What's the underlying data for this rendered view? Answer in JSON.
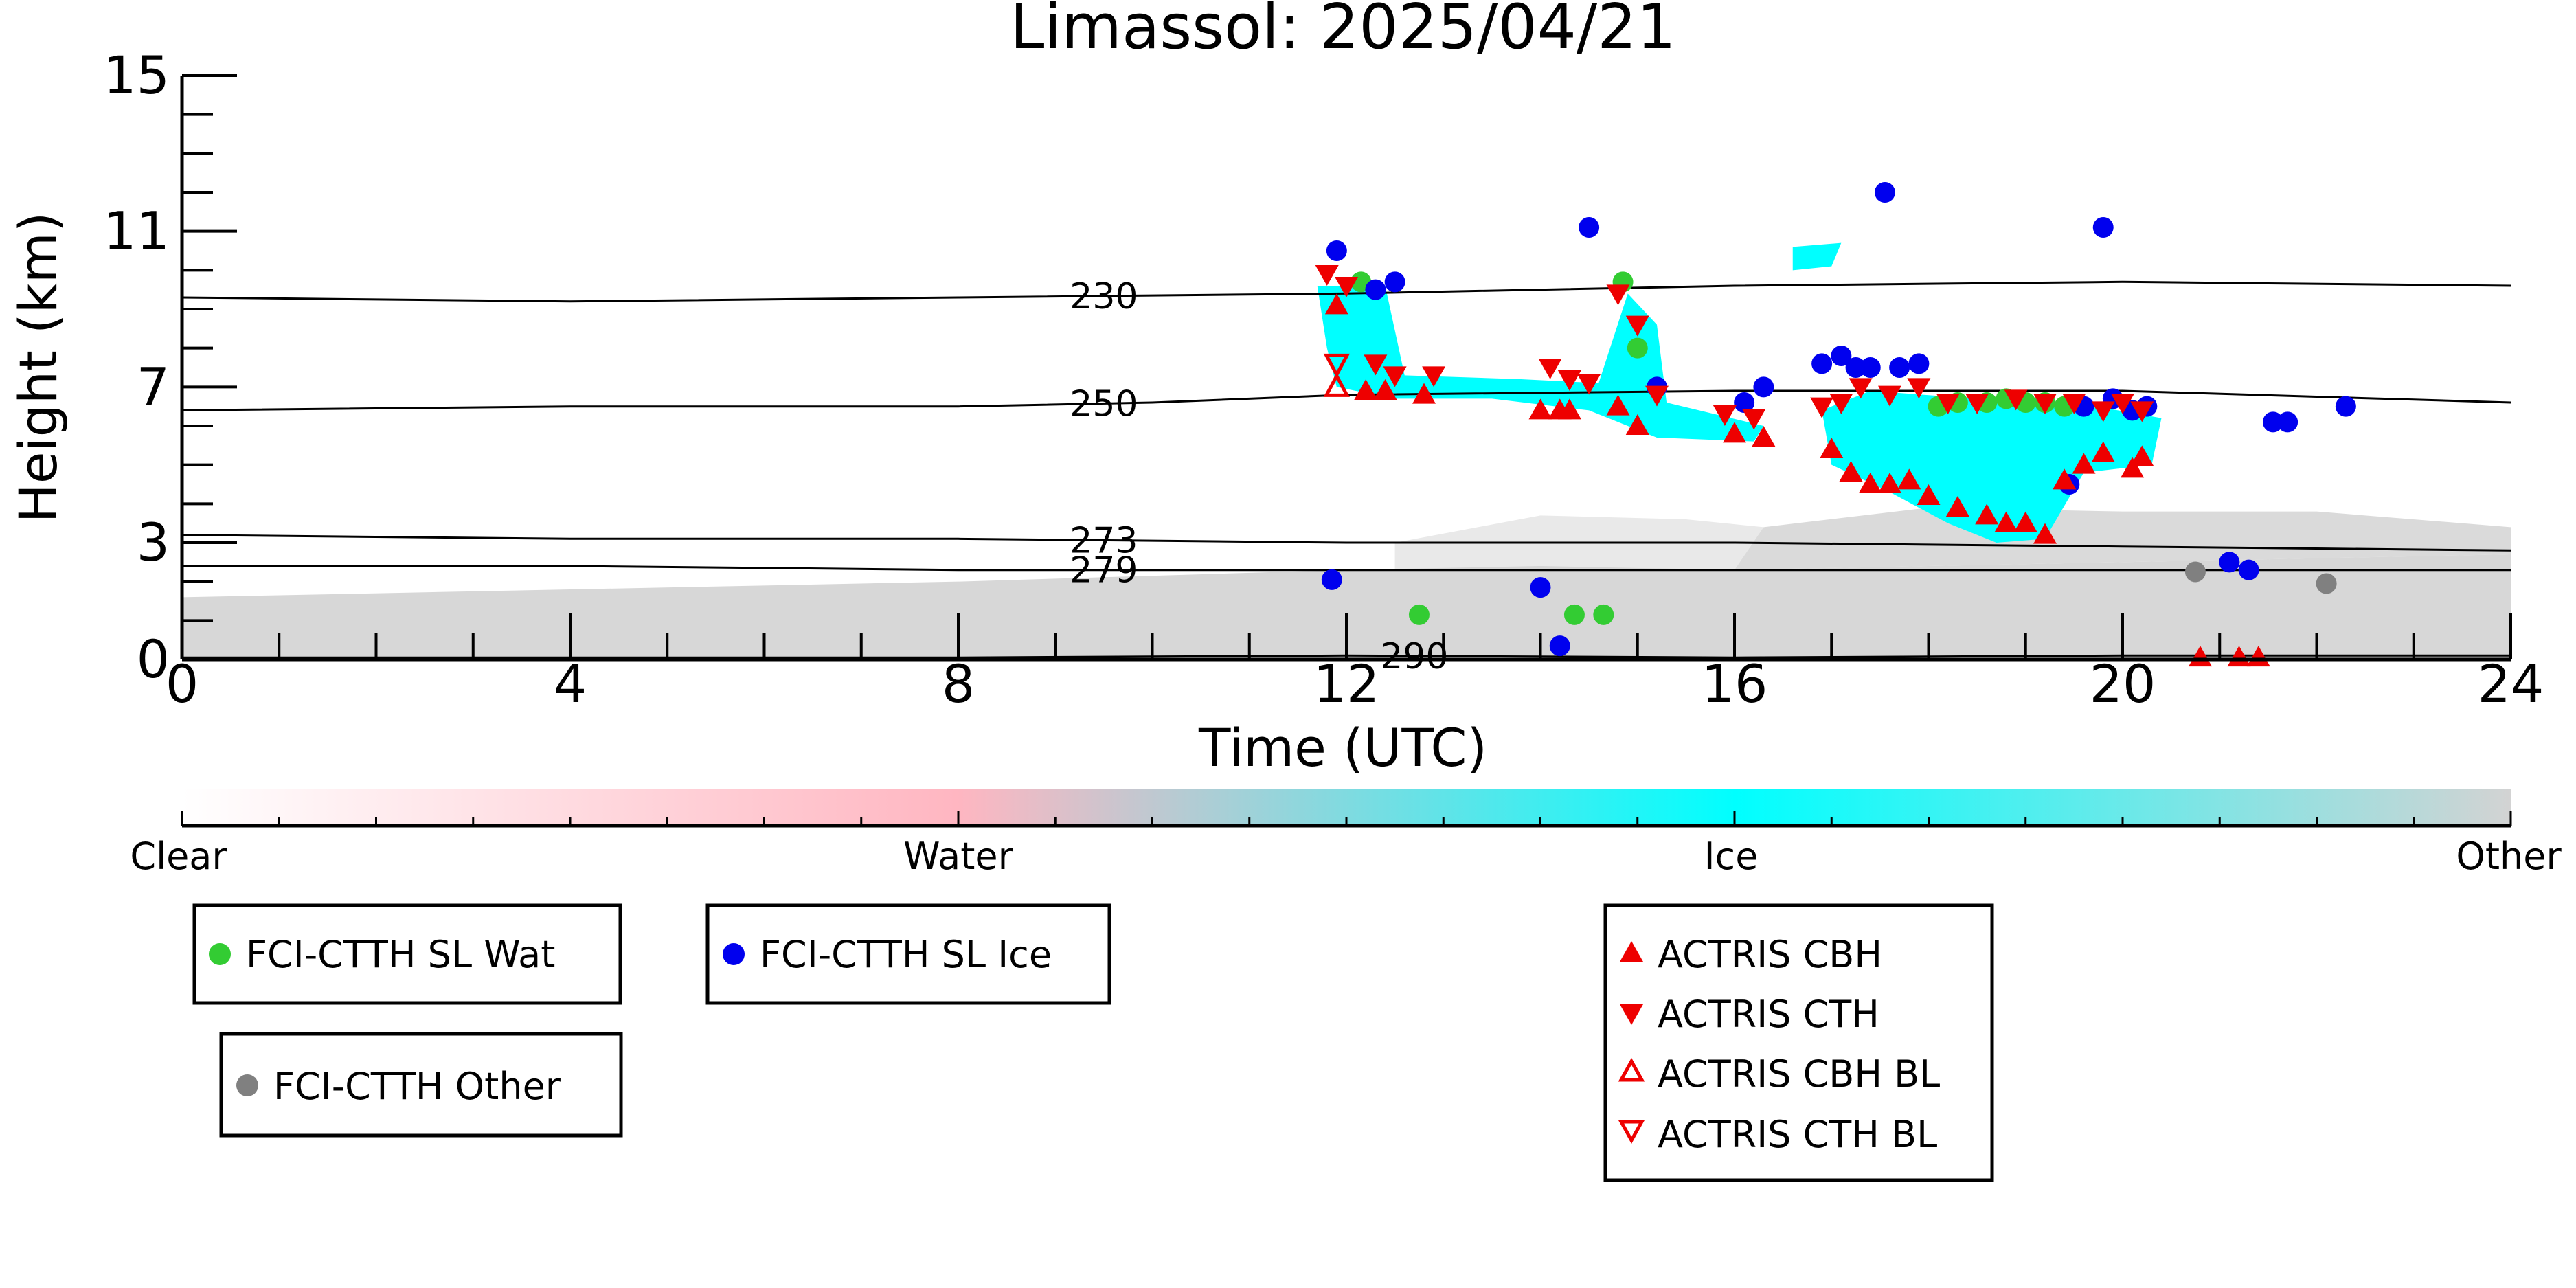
{
  "chart_data": {
    "type": "scatter",
    "title": "Limassol: 2025/04/21",
    "xlabel": "Time (UTC)",
    "ylabel": "Height (km)",
    "xlim": [
      0,
      24
    ],
    "ylim": [
      0,
      15
    ],
    "xticks": [
      0,
      4,
      8,
      12,
      16,
      20,
      24
    ],
    "yticks": [
      0,
      3,
      7,
      11,
      15
    ],
    "grid": false,
    "colorbar": {
      "labels": [
        "Clear",
        "Water",
        "Ice",
        "Other"
      ],
      "positions": [
        0,
        0.333,
        0.667,
        1
      ],
      "colors": [
        "#ffffff",
        "#ffb6c1",
        "#00ffff",
        "#d3d3d3"
      ]
    },
    "contours": [
      {
        "label": "230",
        "label_x": 9.5,
        "x": [
          0,
          4,
          8,
          12,
          16,
          20,
          24
        ],
        "y": [
          9.3,
          9.2,
          9.3,
          9.4,
          9.6,
          9.7,
          9.6
        ]
      },
      {
        "label": "250",
        "label_x": 9.5,
        "x": [
          0,
          4,
          8,
          10,
          12,
          16,
          20,
          24
        ],
        "y": [
          6.4,
          6.5,
          6.5,
          6.6,
          6.8,
          6.9,
          6.9,
          6.6
        ]
      },
      {
        "label": "273",
        "label_x": 9.5,
        "x": [
          0,
          4,
          8,
          12,
          16,
          20,
          24
        ],
        "y": [
          3.2,
          3.1,
          3.1,
          3.0,
          3.0,
          2.9,
          2.8
        ]
      },
      {
        "label": "279",
        "label_x": 9.5,
        "x": [
          0,
          4,
          8,
          12,
          16,
          20,
          24
        ],
        "y": [
          2.4,
          2.4,
          2.3,
          2.3,
          2.3,
          2.3,
          2.3
        ]
      },
      {
        "label": "290",
        "label_x": 12.7,
        "x": [
          0,
          4,
          8,
          12,
          16,
          20,
          24
        ],
        "y": [
          0.05,
          0.05,
          0.05,
          0.1,
          0.05,
          0.1,
          0.1
        ]
      }
    ],
    "series": [
      {
        "name": "FCI-CTTH SL Wat",
        "color": "#33cc33",
        "marker": "circle",
        "x": [
          12.15,
          12.75,
          14.35,
          14.65,
          14.85,
          15.0,
          18.1,
          18.3,
          18.6,
          18.8,
          19.0,
          19.2,
          19.4
        ],
        "y": [
          9.7,
          1.15,
          1.15,
          1.15,
          9.7,
          8.0,
          6.5,
          6.6,
          6.6,
          6.7,
          6.6,
          6.6,
          6.5
        ]
      },
      {
        "name": "FCI-CTTH SL Ice",
        "color": "#0000ee",
        "marker": "circle",
        "x": [
          11.85,
          11.9,
          12.3,
          12.5,
          14.0,
          14.2,
          14.5,
          15.2,
          16.1,
          16.3,
          16.9,
          17.1,
          17.25,
          17.4,
          17.7,
          17.9,
          17.55,
          19.45,
          19.6,
          19.8,
          19.9,
          20.1,
          20.25,
          21.1,
          21.3,
          21.55,
          21.7,
          22.3
        ],
        "y": [
          2.05,
          10.5,
          9.5,
          9.7,
          1.85,
          0.35,
          11.1,
          7.0,
          6.6,
          7.0,
          7.6,
          7.8,
          7.5,
          7.5,
          7.5,
          7.6,
          12.0,
          4.5,
          6.5,
          11.1,
          6.7,
          6.4,
          6.5,
          2.5,
          2.3,
          6.1,
          6.1,
          6.5
        ]
      },
      {
        "name": "FCI-CTTH Other",
        "color": "#808080",
        "marker": "circle",
        "x": [
          20.75,
          22.1
        ],
        "y": [
          2.25,
          1.95
        ]
      },
      {
        "name": "ACTRIS CBH",
        "color": "#ee0000",
        "marker": "triangle-up",
        "x": [
          11.9,
          12.2,
          12.4,
          12.8,
          14.0,
          14.2,
          14.3,
          14.8,
          15.0,
          16.0,
          16.3,
          17.0,
          17.2,
          17.4,
          17.6,
          17.8,
          18.0,
          18.3,
          18.6,
          18.8,
          19.0,
          19.2,
          19.4,
          19.6,
          19.8,
          20.1,
          20.2,
          20.8,
          21.2,
          21.4
        ],
        "y": [
          9.1,
          6.9,
          6.9,
          6.8,
          6.4,
          6.4,
          6.4,
          6.5,
          6.0,
          5.8,
          5.7,
          5.4,
          4.8,
          4.5,
          4.5,
          4.6,
          4.2,
          3.9,
          3.7,
          3.5,
          3.5,
          3.2,
          4.6,
          5.0,
          5.3,
          4.9,
          5.2,
          0.05,
          0.05,
          0.05
        ]
      },
      {
        "name": "ACTRIS CTH",
        "color": "#ee0000",
        "marker": "triangle-down",
        "x": [
          11.8,
          12.0,
          12.3,
          12.5,
          12.9,
          14.1,
          14.3,
          14.5,
          14.8,
          15.0,
          15.2,
          15.9,
          16.2,
          16.9,
          17.1,
          17.3,
          17.6,
          17.9,
          18.2,
          18.5,
          18.9,
          19.2,
          19.5,
          19.8,
          20.0,
          20.2
        ],
        "y": [
          9.9,
          9.6,
          7.6,
          7.3,
          7.3,
          7.5,
          7.2,
          7.1,
          9.4,
          8.6,
          6.8,
          6.3,
          6.2,
          6.5,
          6.6,
          7.0,
          6.8,
          7.0,
          6.6,
          6.6,
          6.7,
          6.6,
          6.6,
          6.4,
          6.6,
          6.4
        ]
      },
      {
        "name": "ACTRIS CBH BL",
        "color": "#ee0000",
        "marker": "triangle-up-open",
        "x": [
          11.9
        ],
        "y": [
          7.0
        ]
      },
      {
        "name": "ACTRIS CTH BL",
        "color": "#ee0000",
        "marker": "triangle-down-open",
        "x": [
          11.9
        ],
        "y": [
          7.6
        ]
      }
    ]
  }
}
